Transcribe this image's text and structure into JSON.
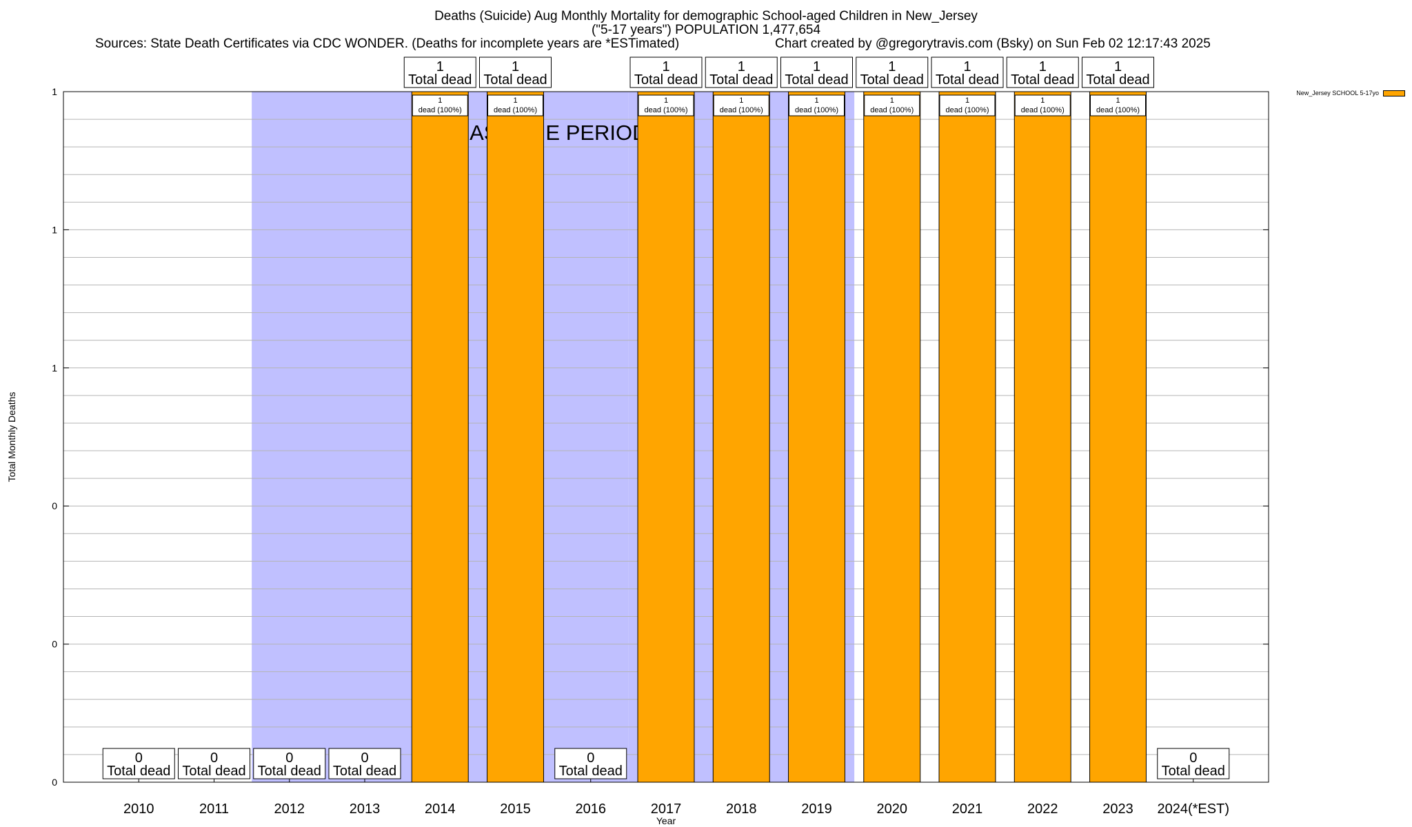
{
  "header": {
    "title": "Deaths (Suicide) Aug Monthly Mortality for demographic School-aged Children in New_Jersey",
    "subtitle": "(\"5-17 years\") POPULATION 1,477,654",
    "sources": "Sources: State Death Certificates via CDC WONDER. (Deaths for incomplete years are *ESTimated)",
    "credit": "Chart created by @gregorytravis.com (Bsky) on Sun Feb 02 12:17:43 2025"
  },
  "legend": {
    "label": "New_Jersey SCHOOL 5-17yo",
    "color": "#ffa500"
  },
  "baseline_label": "BASELINE PERIOD",
  "colors": {
    "bar": "#ffa500",
    "baseline": "#c0c0ff",
    "grid": "#b4b4b4"
  },
  "chart_data": {
    "type": "bar",
    "title": "Deaths (Suicide) Aug Monthly Mortality for demographic School-aged Children in New_Jersey",
    "xlabel": "Year",
    "ylabel": "Total Monthly Deaths",
    "categories": [
      "2010",
      "2011",
      "2012",
      "2013",
      "2014",
      "2015",
      "2016",
      "2017",
      "2018",
      "2019",
      "2020",
      "2021",
      "2022",
      "2023",
      "2024(*EST)"
    ],
    "series": [
      {
        "name": "New_Jersey SCHOOL 5-17yo",
        "values": [
          0,
          0,
          0,
          0,
          1,
          1,
          0,
          1,
          1,
          1,
          1,
          1,
          1,
          1,
          0
        ]
      }
    ],
    "ylim": [
      0,
      1
    ],
    "yticks": [
      {
        "value": 0,
        "label": "0"
      },
      {
        "value": 0.2,
        "label": "0"
      },
      {
        "value": 0.4,
        "label": "0"
      },
      {
        "value": 0.6,
        "label": "1"
      },
      {
        "value": 0.8,
        "label": "1"
      },
      {
        "value": 1,
        "label": "1"
      }
    ],
    "total_label_suffix": "Total dead",
    "bar_label_suffix": "dead (100%)",
    "baseline_shading": [
      {
        "from": "2012",
        "to": "2016"
      },
      {
        "from": "2017",
        "to": "2019"
      }
    ],
    "grid": true,
    "legend_position": "top-right"
  }
}
